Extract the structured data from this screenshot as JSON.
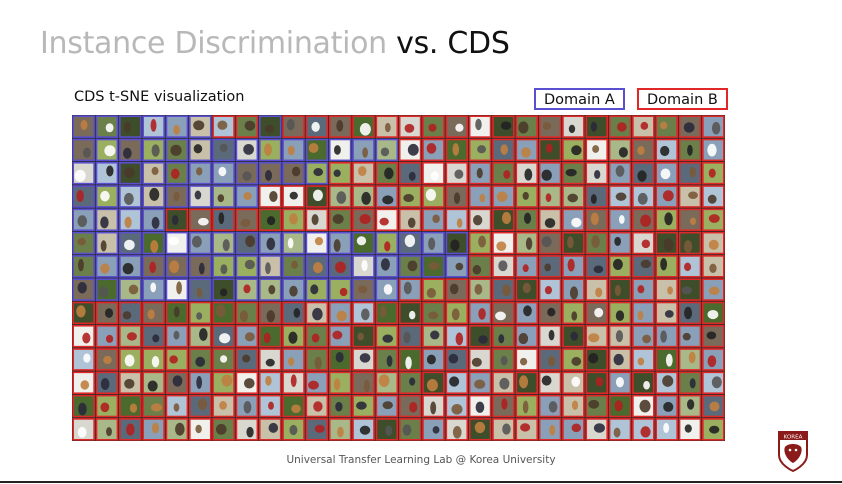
{
  "slide": {
    "title_muted": "Instance Discrimination",
    "title_main": "vs. CDS",
    "subtitle": "CDS t-SNE visualization",
    "footer": "Universal Transfer Learning Lab @ Korea University"
  },
  "legend": {
    "domain_a": {
      "label": "Domain A",
      "color": "#5a4fd0"
    },
    "domain_b": {
      "label": "Domain B",
      "color": "#e02828"
    }
  },
  "visualization": {
    "columns": 28,
    "rows": 14,
    "domain_b_columns_by_row": [
      [
        6,
        7,
        9,
        10,
        11,
        12,
        13,
        14,
        15,
        16,
        17,
        18,
        19,
        20,
        21,
        22,
        23,
        24,
        25,
        26,
        27
      ],
      [
        14,
        15,
        16,
        17,
        18,
        19,
        20,
        21,
        22,
        23,
        24,
        25,
        26,
        27
      ],
      [
        11,
        12,
        13,
        14,
        15,
        16,
        17,
        18,
        19,
        20,
        21,
        22,
        23,
        24,
        25,
        26,
        27
      ],
      [
        8,
        9,
        10,
        11,
        12,
        13,
        14,
        15,
        16,
        17,
        18,
        19,
        20,
        21,
        22,
        23,
        24,
        25,
        26,
        27
      ],
      [
        4,
        5,
        6,
        7,
        8,
        9,
        10,
        11,
        12,
        13,
        14,
        15,
        16,
        17,
        18,
        19,
        20,
        21,
        22,
        23,
        24,
        25,
        26,
        27
      ],
      [
        17,
        18,
        19,
        20,
        21,
        22,
        23,
        24,
        25,
        26,
        27
      ],
      [
        17,
        18,
        19,
        20,
        21,
        22,
        23,
        24,
        25,
        26,
        27
      ],
      [
        14,
        15,
        16,
        17,
        18,
        19,
        20,
        21,
        22,
        23,
        24,
        25,
        26,
        27
      ],
      [
        0,
        1,
        2,
        3,
        4,
        5,
        6,
        7,
        8,
        9,
        10,
        11,
        12,
        13,
        14,
        15,
        16,
        17,
        18,
        19,
        20,
        21,
        22,
        23,
        24,
        25,
        26,
        27
      ],
      [
        0,
        1,
        2,
        3,
        4,
        5,
        6,
        7,
        8,
        9,
        10,
        11,
        12,
        13,
        14,
        15,
        16,
        17,
        18,
        19,
        20,
        21,
        22,
        23,
        24,
        25,
        26,
        27
      ],
      [
        0,
        1,
        2,
        3,
        4,
        5,
        6,
        7,
        8,
        9,
        10,
        11,
        12,
        13,
        14,
        15,
        16,
        17,
        18,
        19,
        20,
        21,
        22,
        23,
        24,
        25,
        26,
        27
      ],
      [
        0,
        1,
        2,
        3,
        4,
        5,
        6,
        7,
        8,
        9,
        10,
        11,
        12,
        13,
        14,
        15,
        16,
        17,
        18,
        19,
        20,
        21,
        22,
        23,
        24,
        25,
        26,
        27
      ],
      [
        0,
        1,
        2,
        3,
        4,
        5,
        6,
        7,
        8,
        9,
        10,
        11,
        12,
        13,
        14,
        15,
        16,
        17,
        18,
        19,
        20,
        21,
        22,
        23,
        24,
        25,
        26,
        27
      ],
      [
        0,
        1,
        2,
        3,
        4,
        5,
        6,
        7,
        8,
        9,
        10,
        11,
        12,
        13,
        14,
        15,
        16,
        17,
        18,
        19,
        20,
        21,
        22,
        23,
        24,
        25,
        26,
        27
      ]
    ],
    "photo_tones": [
      "#6b7f4a",
      "#8aa0b8",
      "#d8d8d0",
      "#4a6a2e",
      "#a8b888",
      "#7a6a5a",
      "#b0c4d8",
      "#3e4e2a",
      "#c8c0a8",
      "#9ab060",
      "#f0f0ec",
      "#5a6a7a"
    ],
    "bird_tones": [
      "#222222",
      "#4a3a2a",
      "#7a5a3a",
      "#2a2a3a",
      "#c08040",
      "#555555",
      "#ffffff",
      "#b02020"
    ]
  },
  "logo": {
    "text": "KOREA",
    "color": "#8b1a1a"
  }
}
